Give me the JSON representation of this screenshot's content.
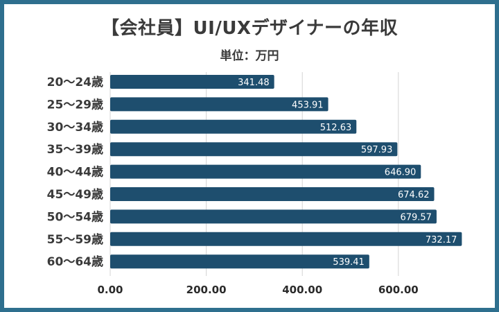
{
  "colors": {
    "border": "#2e6f8e",
    "bar": "#1e4e6e",
    "grid": "#d3d3d3",
    "text": "#3a3a3a"
  },
  "chart_data": {
    "type": "bar",
    "orientation": "horizontal",
    "title": "【会社員】UI/UXデザイナーの年収",
    "subtitle": "単位：万円",
    "categories": [
      "20～24歳",
      "25～29歳",
      "30～34歳",
      "35～39歳",
      "40～44歳",
      "45～49歳",
      "50～54歳",
      "55～59歳",
      "60～64歳"
    ],
    "values": [
      341.48,
      453.91,
      512.63,
      597.93,
      646.9,
      674.62,
      679.57,
      732.17,
      539.41
    ],
    "value_labels": [
      "341.48",
      "453.91",
      "512.63",
      "597.93",
      "646.90",
      "674.62",
      "679.57",
      "732.17",
      "539.41"
    ],
    "xlim": [
      0,
      750
    ],
    "xticks": [
      0,
      200,
      400,
      600
    ],
    "xtick_labels": [
      "0.00",
      "200.00",
      "400.00",
      "600.00"
    ],
    "grid": true,
    "legend": "none"
  }
}
